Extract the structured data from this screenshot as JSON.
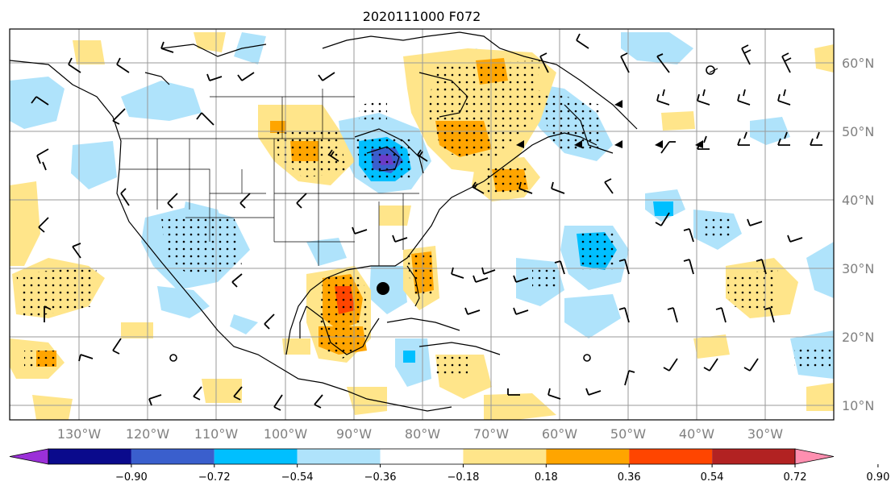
{
  "title": "2020111000 F072",
  "lon_labels": [
    "130°W",
    "120°W",
    "110°W",
    "100°W",
    "90°W",
    "80°W",
    "70°W",
    "60°W",
    "50°W",
    "40°W",
    "30°W"
  ],
  "lat_labels": [
    "60°N",
    "50°N",
    "40°N",
    "30°N",
    "20°N",
    "10°N"
  ],
  "colorbar": {
    "ticks": [
      "−0.90",
      "−0.72",
      "−0.54",
      "−0.36",
      "−0.18",
      "0.18",
      "0.36",
      "0.54",
      "0.72",
      "0.90"
    ],
    "colors": [
      "#9b30d8",
      "#0a0a8c",
      "#3a5fcd",
      "#00bfff",
      "#afe3fb",
      "#ffffff",
      "#ffe58a",
      "#ffa500",
      "#ff4500",
      "#b22222",
      "#ff8fb0"
    ]
  },
  "colors": {
    "light_blue": "#afe3fb",
    "cyan": "#00bfff",
    "blue": "#3a5fcd",
    "purple": "#9b30d8",
    "light_yellow": "#ffe58a",
    "orange": "#ffa500",
    "red_orange": "#ff4500",
    "grid": "#9a9a9a",
    "coast": "#000000"
  }
}
